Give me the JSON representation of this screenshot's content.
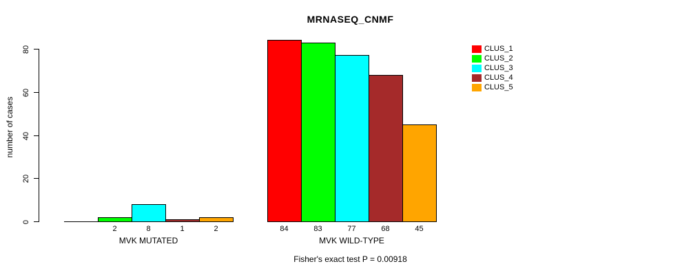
{
  "title": "MRNASEQ_CNMF",
  "caption": "Fisher's exact test P = 0.00918",
  "y_axis": {
    "label": "number of cases",
    "ticks": [
      0,
      20,
      40,
      60,
      80
    ]
  },
  "legend": {
    "items": [
      {
        "label": "CLUS_1",
        "color": "#ff0000"
      },
      {
        "label": "CLUS_2",
        "color": "#00ff00"
      },
      {
        "label": "CLUS_3",
        "color": "#00ffff"
      },
      {
        "label": "CLUS_4",
        "color": "#a52a2a"
      },
      {
        "label": "CLUS_5",
        "color": "#ffa500"
      }
    ]
  },
  "chart_data": {
    "type": "bar",
    "title": "MRNASEQ_CNMF",
    "ylabel": "number of cases",
    "ylim": [
      0,
      84
    ],
    "yticks": [
      0,
      20,
      40,
      60,
      80
    ],
    "grid": false,
    "legend_position": "top-right",
    "series": [
      "CLUS_1",
      "CLUS_2",
      "CLUS_3",
      "CLUS_4",
      "CLUS_5"
    ],
    "series_colors": [
      "#ff0000",
      "#00ff00",
      "#00ffff",
      "#a52a2a",
      "#ffa500"
    ],
    "groups": [
      {
        "label": "MVK MUTATED",
        "values": [
          0,
          2,
          8,
          1,
          2
        ]
      },
      {
        "label": "MVK WILD-TYPE",
        "values": [
          84,
          83,
          77,
          68,
          45
        ]
      }
    ],
    "bar_value_labels_shown": true,
    "zero_bars_unlabeled": true,
    "annotation": "Fisher's exact test P = 0.00918"
  }
}
